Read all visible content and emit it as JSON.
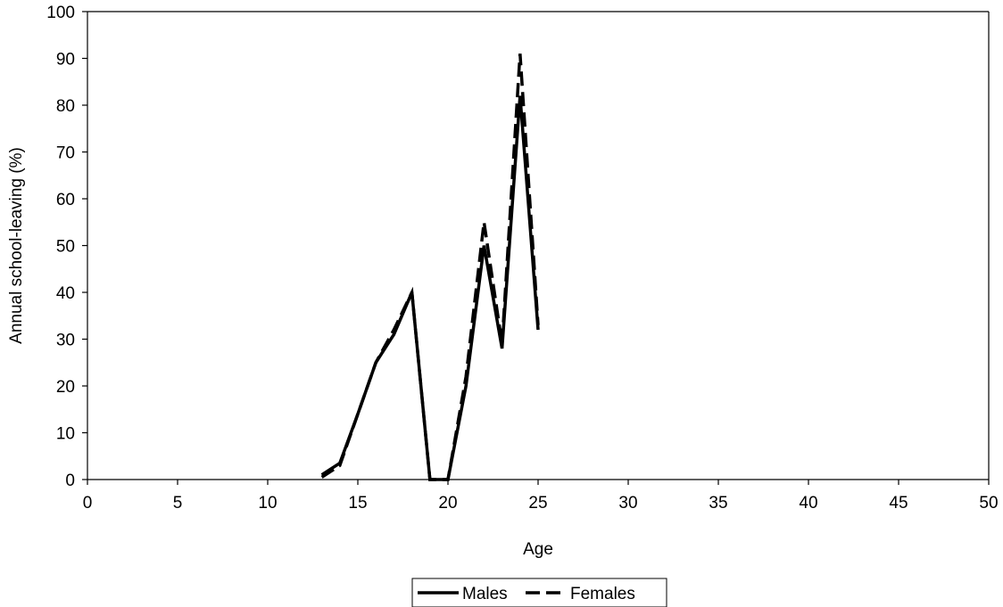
{
  "chart_data": {
    "type": "line",
    "xlabel": "Age",
    "ylabel": "Annual school-leaving (%)",
    "xlim": [
      0,
      50
    ],
    "ylim": [
      0,
      100
    ],
    "x_ticks": [
      "0",
      "5",
      "10",
      "15",
      "20",
      "25",
      "30",
      "35",
      "40",
      "45",
      "50"
    ],
    "y_ticks": [
      "0",
      "10",
      "20",
      "30",
      "40",
      "50",
      "60",
      "70",
      "80",
      "90",
      "100"
    ],
    "grid": false,
    "legend_position": "bottom",
    "series": [
      {
        "name": "Males",
        "style": "solid",
        "color": "#000000",
        "x": [
          13,
          14,
          15,
          16,
          17,
          18,
          19,
          20,
          21,
          22,
          23,
          24,
          25
        ],
        "values": [
          1,
          3.5,
          14,
          25,
          31,
          40,
          0,
          0,
          20,
          50,
          28,
          82,
          32
        ]
      },
      {
        "name": "Females",
        "style": "dashed",
        "color": "#000000",
        "x": [
          13,
          14,
          15,
          16,
          17,
          18,
          19,
          20,
          21,
          22,
          23,
          24,
          25
        ],
        "values": [
          0.5,
          3,
          14,
          25,
          32,
          40,
          0,
          0,
          22,
          55,
          29,
          91,
          33
        ]
      }
    ]
  }
}
